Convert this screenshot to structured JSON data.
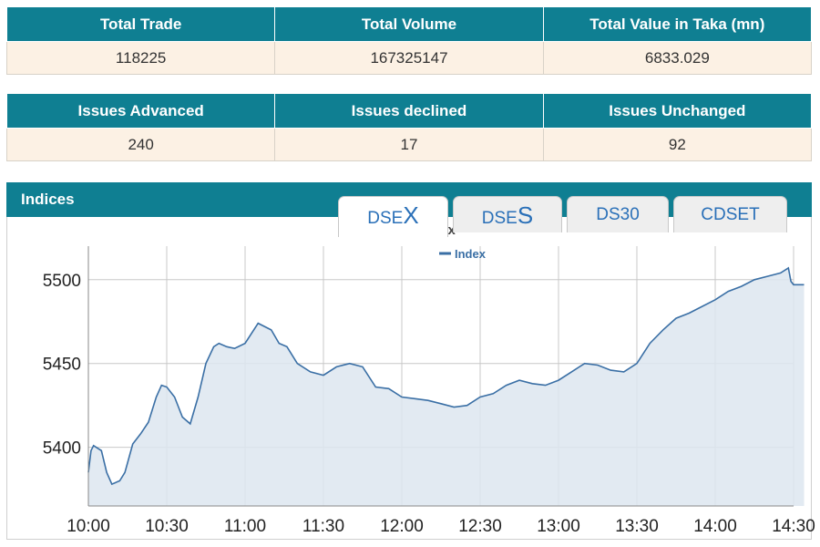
{
  "summary": {
    "headers": [
      "Total Trade",
      "Total Volume",
      "Total Value in Taka (mn)"
    ],
    "values": [
      "118225",
      "167325147",
      "6833.029"
    ]
  },
  "issues": {
    "headers": [
      "Issues Advanced",
      "Issues declined",
      "Issues Unchanged"
    ],
    "values": [
      "240",
      "17",
      "92"
    ]
  },
  "indices": {
    "title": "Indices",
    "tabs": [
      {
        "prefix": "DSE",
        "suffix": "X"
      },
      {
        "prefix": "DSE",
        "suffix": "S"
      },
      {
        "prefix": "DS30",
        "suffix": ""
      },
      {
        "prefix": "CDSET",
        "suffix": ""
      }
    ],
    "active_tab": 0
  },
  "colors": {
    "header_bg": "#0f7f92",
    "row_bg": "#fcf1e4",
    "line": "#3a6fa5",
    "area": "#dde6f0"
  },
  "chart_data": {
    "type": "area",
    "title": "DSE Broad Index",
    "legend": "top-center",
    "grid": true,
    "ylim": [
      5365,
      5520
    ],
    "yticks": [
      5400,
      5450,
      5500
    ],
    "xticks": [
      "10:00",
      "10:30",
      "11:00",
      "11:30",
      "12:00",
      "12:30",
      "13:00",
      "13:30",
      "14:00",
      "14:30"
    ],
    "series": [
      {
        "name": "Index",
        "x": [
          "10:00",
          "10:01",
          "10:02",
          "10:05",
          "10:07",
          "10:09",
          "10:12",
          "10:14",
          "10:17",
          "10:20",
          "10:23",
          "10:26",
          "10:28",
          "10:30",
          "10:33",
          "10:36",
          "10:39",
          "10:42",
          "10:45",
          "10:48",
          "10:50",
          "10:53",
          "10:56",
          "11:00",
          "11:05",
          "11:10",
          "11:13",
          "11:16",
          "11:20",
          "11:25",
          "11:30",
          "11:35",
          "11:40",
          "11:45",
          "11:50",
          "11:55",
          "12:00",
          "12:05",
          "12:10",
          "12:15",
          "12:20",
          "12:25",
          "12:30",
          "12:35",
          "12:40",
          "12:45",
          "12:50",
          "12:55",
          "13:00",
          "13:05",
          "13:10",
          "13:15",
          "13:20",
          "13:25",
          "13:30",
          "13:35",
          "13:40",
          "13:45",
          "13:50",
          "14:00",
          "14:05",
          "14:10",
          "14:15",
          "14:20",
          "14:25",
          "14:28",
          "14:29",
          "14:30",
          "14:34"
        ],
        "values": [
          5385,
          5398,
          5401,
          5398,
          5385,
          5378,
          5380,
          5385,
          5402,
          5408,
          5415,
          5430,
          5437,
          5436,
          5430,
          5418,
          5414,
          5430,
          5450,
          5460,
          5462,
          5460,
          5459,
          5462,
          5474,
          5470,
          5462,
          5460,
          5450,
          5445,
          5443,
          5448,
          5450,
          5448,
          5436,
          5435,
          5430,
          5429,
          5428,
          5426,
          5424,
          5425,
          5430,
          5432,
          5437,
          5440,
          5438,
          5437,
          5440,
          5445,
          5450,
          5449,
          5446,
          5445,
          5450,
          5462,
          5470,
          5477,
          5480,
          5488,
          5493,
          5496,
          5500,
          5502,
          5504,
          5507,
          5499,
          5497,
          5497
        ]
      }
    ]
  }
}
